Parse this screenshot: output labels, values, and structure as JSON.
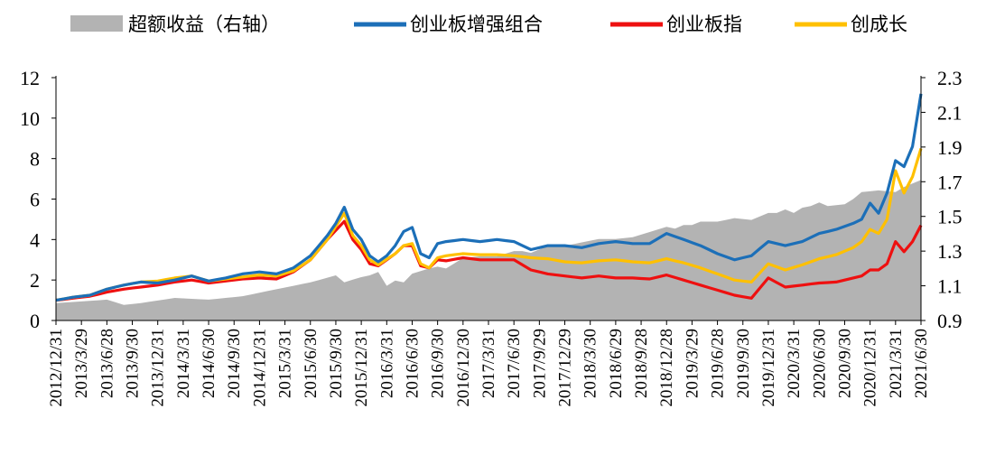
{
  "chart_data": {
    "type": "line",
    "title": "",
    "legend": [
      {
        "name": "超额收益（右轴）",
        "kind": "area",
        "color": "#b3b3b3"
      },
      {
        "name": "创业板增强组合",
        "kind": "line",
        "color": "#1c6fb8"
      },
      {
        "name": "创业板指",
        "kind": "line",
        "color": "#ee1010"
      },
      {
        "name": "创成长",
        "kind": "line",
        "color": "#ffc000"
      }
    ],
    "left_axis": {
      "ylim": [
        0,
        12
      ],
      "ticks": [
        "0",
        "2",
        "4",
        "6",
        "8",
        "10",
        "12"
      ]
    },
    "right_axis": {
      "ylim": [
        0.9,
        2.3
      ],
      "ticks": [
        "0.9",
        "1.1",
        "1.3",
        "1.5",
        "1.7",
        "1.9",
        "2.1",
        "2.3"
      ]
    },
    "x_tick_labels": [
      "2012/12/31",
      "2013/3/29",
      "2013/6/28",
      "2013/9/30",
      "2013/12/31",
      "2014/3/31",
      "2014/6/30",
      "2014/9/30",
      "2014/12/31",
      "2015/3/31",
      "2015/6/30",
      "2015/9/30",
      "2015/12/31",
      "2016/3/31",
      "2016/6/30",
      "2016/9/30",
      "2016/12/30",
      "2017/3/31",
      "2017/6/30",
      "2017/9/29",
      "2017/12/29",
      "2018/3/30",
      "2018/6/29",
      "2018/9/28",
      "2018/12/28",
      "2019/3/29",
      "2019/6/28",
      "2019/9/30",
      "2019/12/31",
      "2020/3/31",
      "2020/6/30",
      "2020/9/30",
      "2020/12/31",
      "2021/3/31",
      "2021/6/30"
    ],
    "x_count": 103,
    "series": [
      {
        "name": "超额收益（右轴）",
        "axis": "right",
        "type": "area",
        "color": "#b3b3b3",
        "knots": [
          [
            0,
            1.0
          ],
          [
            6,
            1.02
          ],
          [
            8,
            0.99
          ],
          [
            10,
            1.0
          ],
          [
            14,
            1.03
          ],
          [
            18,
            1.02
          ],
          [
            22,
            1.04
          ],
          [
            26,
            1.08
          ],
          [
            28,
            1.1
          ],
          [
            30,
            1.12
          ],
          [
            33,
            1.16
          ],
          [
            34,
            1.12
          ],
          [
            36,
            1.15
          ],
          [
            37,
            1.16
          ],
          [
            38,
            1.18
          ],
          [
            39,
            1.1
          ],
          [
            40,
            1.13
          ],
          [
            41,
            1.12
          ],
          [
            42,
            1.17
          ],
          [
            44,
            1.2
          ],
          [
            45,
            1.21
          ],
          [
            46,
            1.2
          ],
          [
            48,
            1.26
          ],
          [
            50,
            1.27
          ],
          [
            52,
            1.27
          ],
          [
            54,
            1.3
          ],
          [
            55,
            1.3
          ],
          [
            56,
            1.29
          ],
          [
            58,
            1.33
          ],
          [
            60,
            1.33
          ],
          [
            62,
            1.35
          ],
          [
            64,
            1.37
          ],
          [
            66,
            1.37
          ],
          [
            68,
            1.38
          ],
          [
            70,
            1.41
          ],
          [
            72,
            1.44
          ],
          [
            73,
            1.43
          ],
          [
            74,
            1.45
          ],
          [
            75,
            1.45
          ],
          [
            76,
            1.47
          ],
          [
            78,
            1.47
          ],
          [
            80,
            1.49
          ],
          [
            82,
            1.48
          ],
          [
            84,
            1.52
          ],
          [
            85,
            1.52
          ],
          [
            86,
            1.54
          ],
          [
            87,
            1.52
          ],
          [
            88,
            1.55
          ],
          [
            89,
            1.56
          ],
          [
            90,
            1.58
          ],
          [
            91,
            1.56
          ],
          [
            93,
            1.57
          ],
          [
            94,
            1.6
          ],
          [
            95,
            1.64
          ],
          [
            97,
            1.65
          ],
          [
            99,
            1.64
          ],
          [
            100,
            1.67
          ],
          [
            101,
            1.69
          ],
          [
            102,
            1.71
          ]
        ]
      },
      {
        "name": "创业板增强组合",
        "axis": "left",
        "type": "line",
        "color": "#1c6fb8",
        "knots": [
          [
            0,
            1.0
          ],
          [
            2,
            1.15
          ],
          [
            4,
            1.25
          ],
          [
            6,
            1.55
          ],
          [
            8,
            1.75
          ],
          [
            10,
            1.9
          ],
          [
            12,
            1.85
          ],
          [
            14,
            2.0
          ],
          [
            16,
            2.2
          ],
          [
            18,
            1.95
          ],
          [
            20,
            2.1
          ],
          [
            22,
            2.3
          ],
          [
            24,
            2.4
          ],
          [
            26,
            2.3
          ],
          [
            28,
            2.6
          ],
          [
            30,
            3.2
          ],
          [
            32,
            4.2
          ],
          [
            33,
            4.8
          ],
          [
            34,
            5.6
          ],
          [
            35,
            4.5
          ],
          [
            36,
            4.0
          ],
          [
            37,
            3.2
          ],
          [
            38,
            2.9
          ],
          [
            39,
            3.2
          ],
          [
            40,
            3.7
          ],
          [
            41,
            4.4
          ],
          [
            42,
            4.6
          ],
          [
            43,
            3.3
          ],
          [
            44,
            3.1
          ],
          [
            45,
            3.8
          ],
          [
            46,
            3.9
          ],
          [
            48,
            4.0
          ],
          [
            50,
            3.9
          ],
          [
            52,
            4.0
          ],
          [
            54,
            3.9
          ],
          [
            56,
            3.5
          ],
          [
            58,
            3.7
          ],
          [
            60,
            3.7
          ],
          [
            62,
            3.6
          ],
          [
            64,
            3.8
          ],
          [
            66,
            3.9
          ],
          [
            68,
            3.8
          ],
          [
            70,
            3.8
          ],
          [
            72,
            4.3
          ],
          [
            74,
            4.0
          ],
          [
            76,
            3.7
          ],
          [
            78,
            3.3
          ],
          [
            80,
            3.0
          ],
          [
            82,
            3.2
          ],
          [
            84,
            3.9
          ],
          [
            86,
            3.7
          ],
          [
            88,
            3.9
          ],
          [
            90,
            4.3
          ],
          [
            92,
            4.5
          ],
          [
            94,
            4.8
          ],
          [
            95,
            5.0
          ],
          [
            96,
            5.8
          ],
          [
            97,
            5.3
          ],
          [
            98,
            6.3
          ],
          [
            99,
            7.9
          ],
          [
            100,
            7.6
          ],
          [
            101,
            8.6
          ],
          [
            102,
            11.2
          ]
        ]
      },
      {
        "name": "创业板指",
        "axis": "left",
        "type": "line",
        "color": "#ee1010",
        "knots": [
          [
            0,
            1.0
          ],
          [
            2,
            1.1
          ],
          [
            4,
            1.2
          ],
          [
            6,
            1.4
          ],
          [
            8,
            1.55
          ],
          [
            10,
            1.65
          ],
          [
            12,
            1.75
          ],
          [
            14,
            1.9
          ],
          [
            16,
            2.0
          ],
          [
            18,
            1.85
          ],
          [
            20,
            1.95
          ],
          [
            22,
            2.05
          ],
          [
            24,
            2.1
          ],
          [
            26,
            2.05
          ],
          [
            28,
            2.4
          ],
          [
            30,
            3.0
          ],
          [
            32,
            4.0
          ],
          [
            34,
            4.9
          ],
          [
            35,
            4.0
          ],
          [
            36,
            3.5
          ],
          [
            37,
            2.8
          ],
          [
            38,
            2.7
          ],
          [
            40,
            3.3
          ],
          [
            41,
            3.7
          ],
          [
            42,
            3.7
          ],
          [
            43,
            2.7
          ],
          [
            44,
            2.6
          ],
          [
            45,
            3.0
          ],
          [
            46,
            2.95
          ],
          [
            48,
            3.1
          ],
          [
            50,
            3.0
          ],
          [
            52,
            3.0
          ],
          [
            54,
            3.0
          ],
          [
            56,
            2.5
          ],
          [
            58,
            2.3
          ],
          [
            60,
            2.2
          ],
          [
            62,
            2.1
          ],
          [
            64,
            2.2
          ],
          [
            66,
            2.1
          ],
          [
            68,
            2.1
          ],
          [
            70,
            2.05
          ],
          [
            72,
            2.25
          ],
          [
            74,
            2.0
          ],
          [
            76,
            1.75
          ],
          [
            78,
            1.5
          ],
          [
            80,
            1.25
          ],
          [
            82,
            1.1
          ],
          [
            84,
            2.1
          ],
          [
            86,
            1.65
          ],
          [
            88,
            1.75
          ],
          [
            90,
            1.85
          ],
          [
            92,
            1.9
          ],
          [
            94,
            2.1
          ],
          [
            95,
            2.2
          ],
          [
            96,
            2.5
          ],
          [
            97,
            2.5
          ],
          [
            98,
            2.8
          ],
          [
            99,
            3.9
          ],
          [
            100,
            3.4
          ],
          [
            101,
            3.9
          ],
          [
            102,
            4.7
          ]
        ]
      },
      {
        "name": "创成长",
        "axis": "left",
        "type": "line",
        "color": "#ffc000",
        "knots": [
          [
            0,
            1.0
          ],
          [
            2,
            1.15
          ],
          [
            4,
            1.25
          ],
          [
            6,
            1.55
          ],
          [
            8,
            1.75
          ],
          [
            10,
            1.9
          ],
          [
            12,
            1.95
          ],
          [
            14,
            2.1
          ],
          [
            16,
            2.2
          ],
          [
            18,
            1.95
          ],
          [
            20,
            2.05
          ],
          [
            22,
            2.15
          ],
          [
            24,
            2.25
          ],
          [
            26,
            2.2
          ],
          [
            28,
            2.45
          ],
          [
            30,
            3.0
          ],
          [
            32,
            4.0
          ],
          [
            34,
            5.3
          ],
          [
            35,
            4.2
          ],
          [
            36,
            3.7
          ],
          [
            37,
            3.0
          ],
          [
            38,
            2.75
          ],
          [
            40,
            3.3
          ],
          [
            41,
            3.7
          ],
          [
            42,
            3.8
          ],
          [
            43,
            2.8
          ],
          [
            44,
            2.6
          ],
          [
            45,
            3.1
          ],
          [
            46,
            3.2
          ],
          [
            48,
            3.3
          ],
          [
            50,
            3.25
          ],
          [
            52,
            3.25
          ],
          [
            54,
            3.2
          ],
          [
            56,
            3.1
          ],
          [
            58,
            3.05
          ],
          [
            60,
            2.9
          ],
          [
            62,
            2.85
          ],
          [
            64,
            2.95
          ],
          [
            66,
            3.0
          ],
          [
            68,
            2.9
          ],
          [
            70,
            2.85
          ],
          [
            72,
            3.05
          ],
          [
            74,
            2.85
          ],
          [
            76,
            2.6
          ],
          [
            78,
            2.3
          ],
          [
            80,
            2.0
          ],
          [
            82,
            1.9
          ],
          [
            84,
            2.8
          ],
          [
            86,
            2.5
          ],
          [
            88,
            2.75
          ],
          [
            90,
            3.05
          ],
          [
            92,
            3.25
          ],
          [
            94,
            3.6
          ],
          [
            95,
            3.9
          ],
          [
            96,
            4.5
          ],
          [
            97,
            4.3
          ],
          [
            98,
            5.0
          ],
          [
            99,
            7.4
          ],
          [
            100,
            6.3
          ],
          [
            101,
            7.1
          ],
          [
            102,
            8.5
          ]
        ]
      }
    ]
  }
}
